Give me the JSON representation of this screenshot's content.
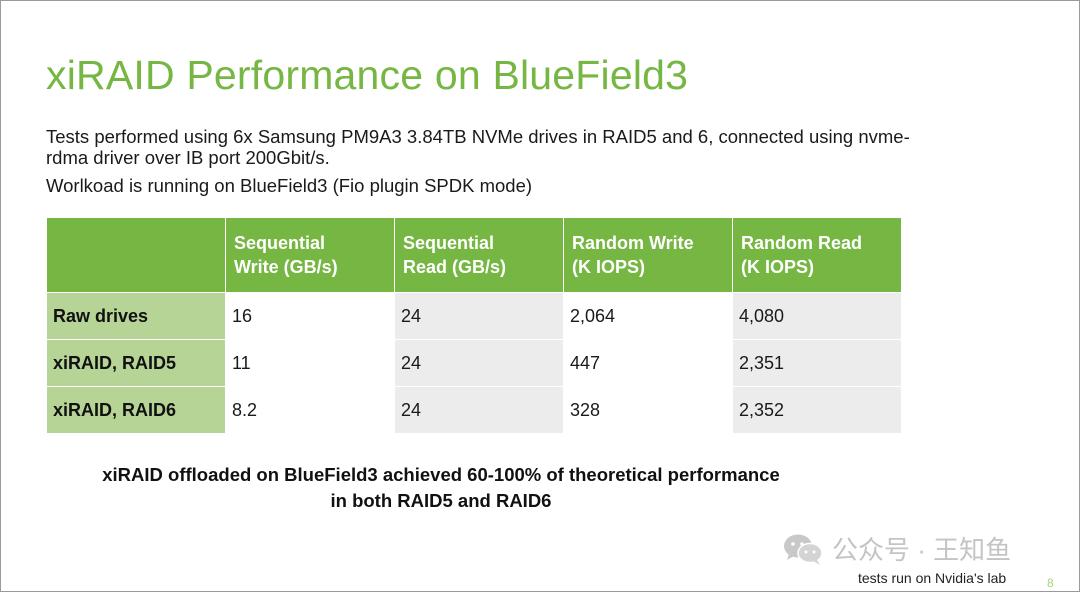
{
  "slide": {
    "title": "xiRAID Performance on BlueField3",
    "description_line1": "Tests performed using 6x Samsung PM9A3 3.84TB NVMe drives in RAID5 and 6, connected using nvme-rdma driver over IB port 200Gbit/s.",
    "description_line2": "Worlkoad is running on BlueField3 (Fio plugin SPDK mode)",
    "conclusion_line1": "xiRAID offloaded on BlueField3 achieved 60-100% of theoretical performance",
    "conclusion_line2": "in both RAID5 and RAID6",
    "footnote": "tests run on Nvidia's lab",
    "page_number": "8",
    "watermark": "公众号 · 王知鱼"
  },
  "table": {
    "headers": [
      {
        "line1": "Sequential",
        "line2": "Write (GB/s)"
      },
      {
        "line1": "Sequential",
        "line2": "Read (GB/s)"
      },
      {
        "line1": "Random Write",
        "line2": "(K IOPS)"
      },
      {
        "line1": "Random Read",
        "line2": "(K IOPS)"
      }
    ],
    "rows": [
      {
        "label": "Raw drives",
        "values": [
          "16",
          "24",
          "2,064",
          "4,080"
        ]
      },
      {
        "label": "xiRAID, RAID5",
        "values": [
          "11",
          "24",
          "447",
          "2,351"
        ]
      },
      {
        "label": "xiRAID, RAID6",
        "values": [
          "8.2",
          "24",
          "328",
          "2,352"
        ]
      }
    ]
  },
  "colors": {
    "accent_green": "#76b642",
    "row_header_green": "#b5d496",
    "cell_gray": "#ececec"
  }
}
